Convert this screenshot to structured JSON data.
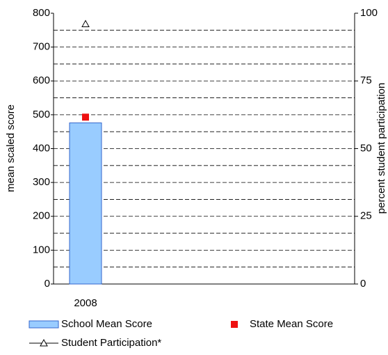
{
  "chart_data": {
    "type": "combo",
    "categories": [
      "2008"
    ],
    "series": [
      {
        "name": "School Mean Score",
        "type": "bar",
        "color": "#99ccff",
        "values": [
          476
        ]
      },
      {
        "name": "State Mean Score",
        "type": "square",
        "color": "#ee1111",
        "values": [
          493
        ]
      },
      {
        "name": "Student Participation*",
        "type": "triangle",
        "color": "#000000",
        "axis": "y2",
        "values": [
          96
        ]
      }
    ],
    "ylabel": "mean scaled score",
    "y2label": "percent student participation",
    "ylim": [
      0,
      800
    ],
    "yticks": [
      0,
      100,
      200,
      300,
      400,
      500,
      600,
      700,
      800
    ],
    "y_minor_ticks": [
      50,
      150,
      250,
      350,
      450,
      550,
      650,
      750
    ],
    "y2lim": [
      0,
      100
    ],
    "y2ticks": [
      0,
      25,
      50,
      75,
      100
    ],
    "grid": true
  }
}
